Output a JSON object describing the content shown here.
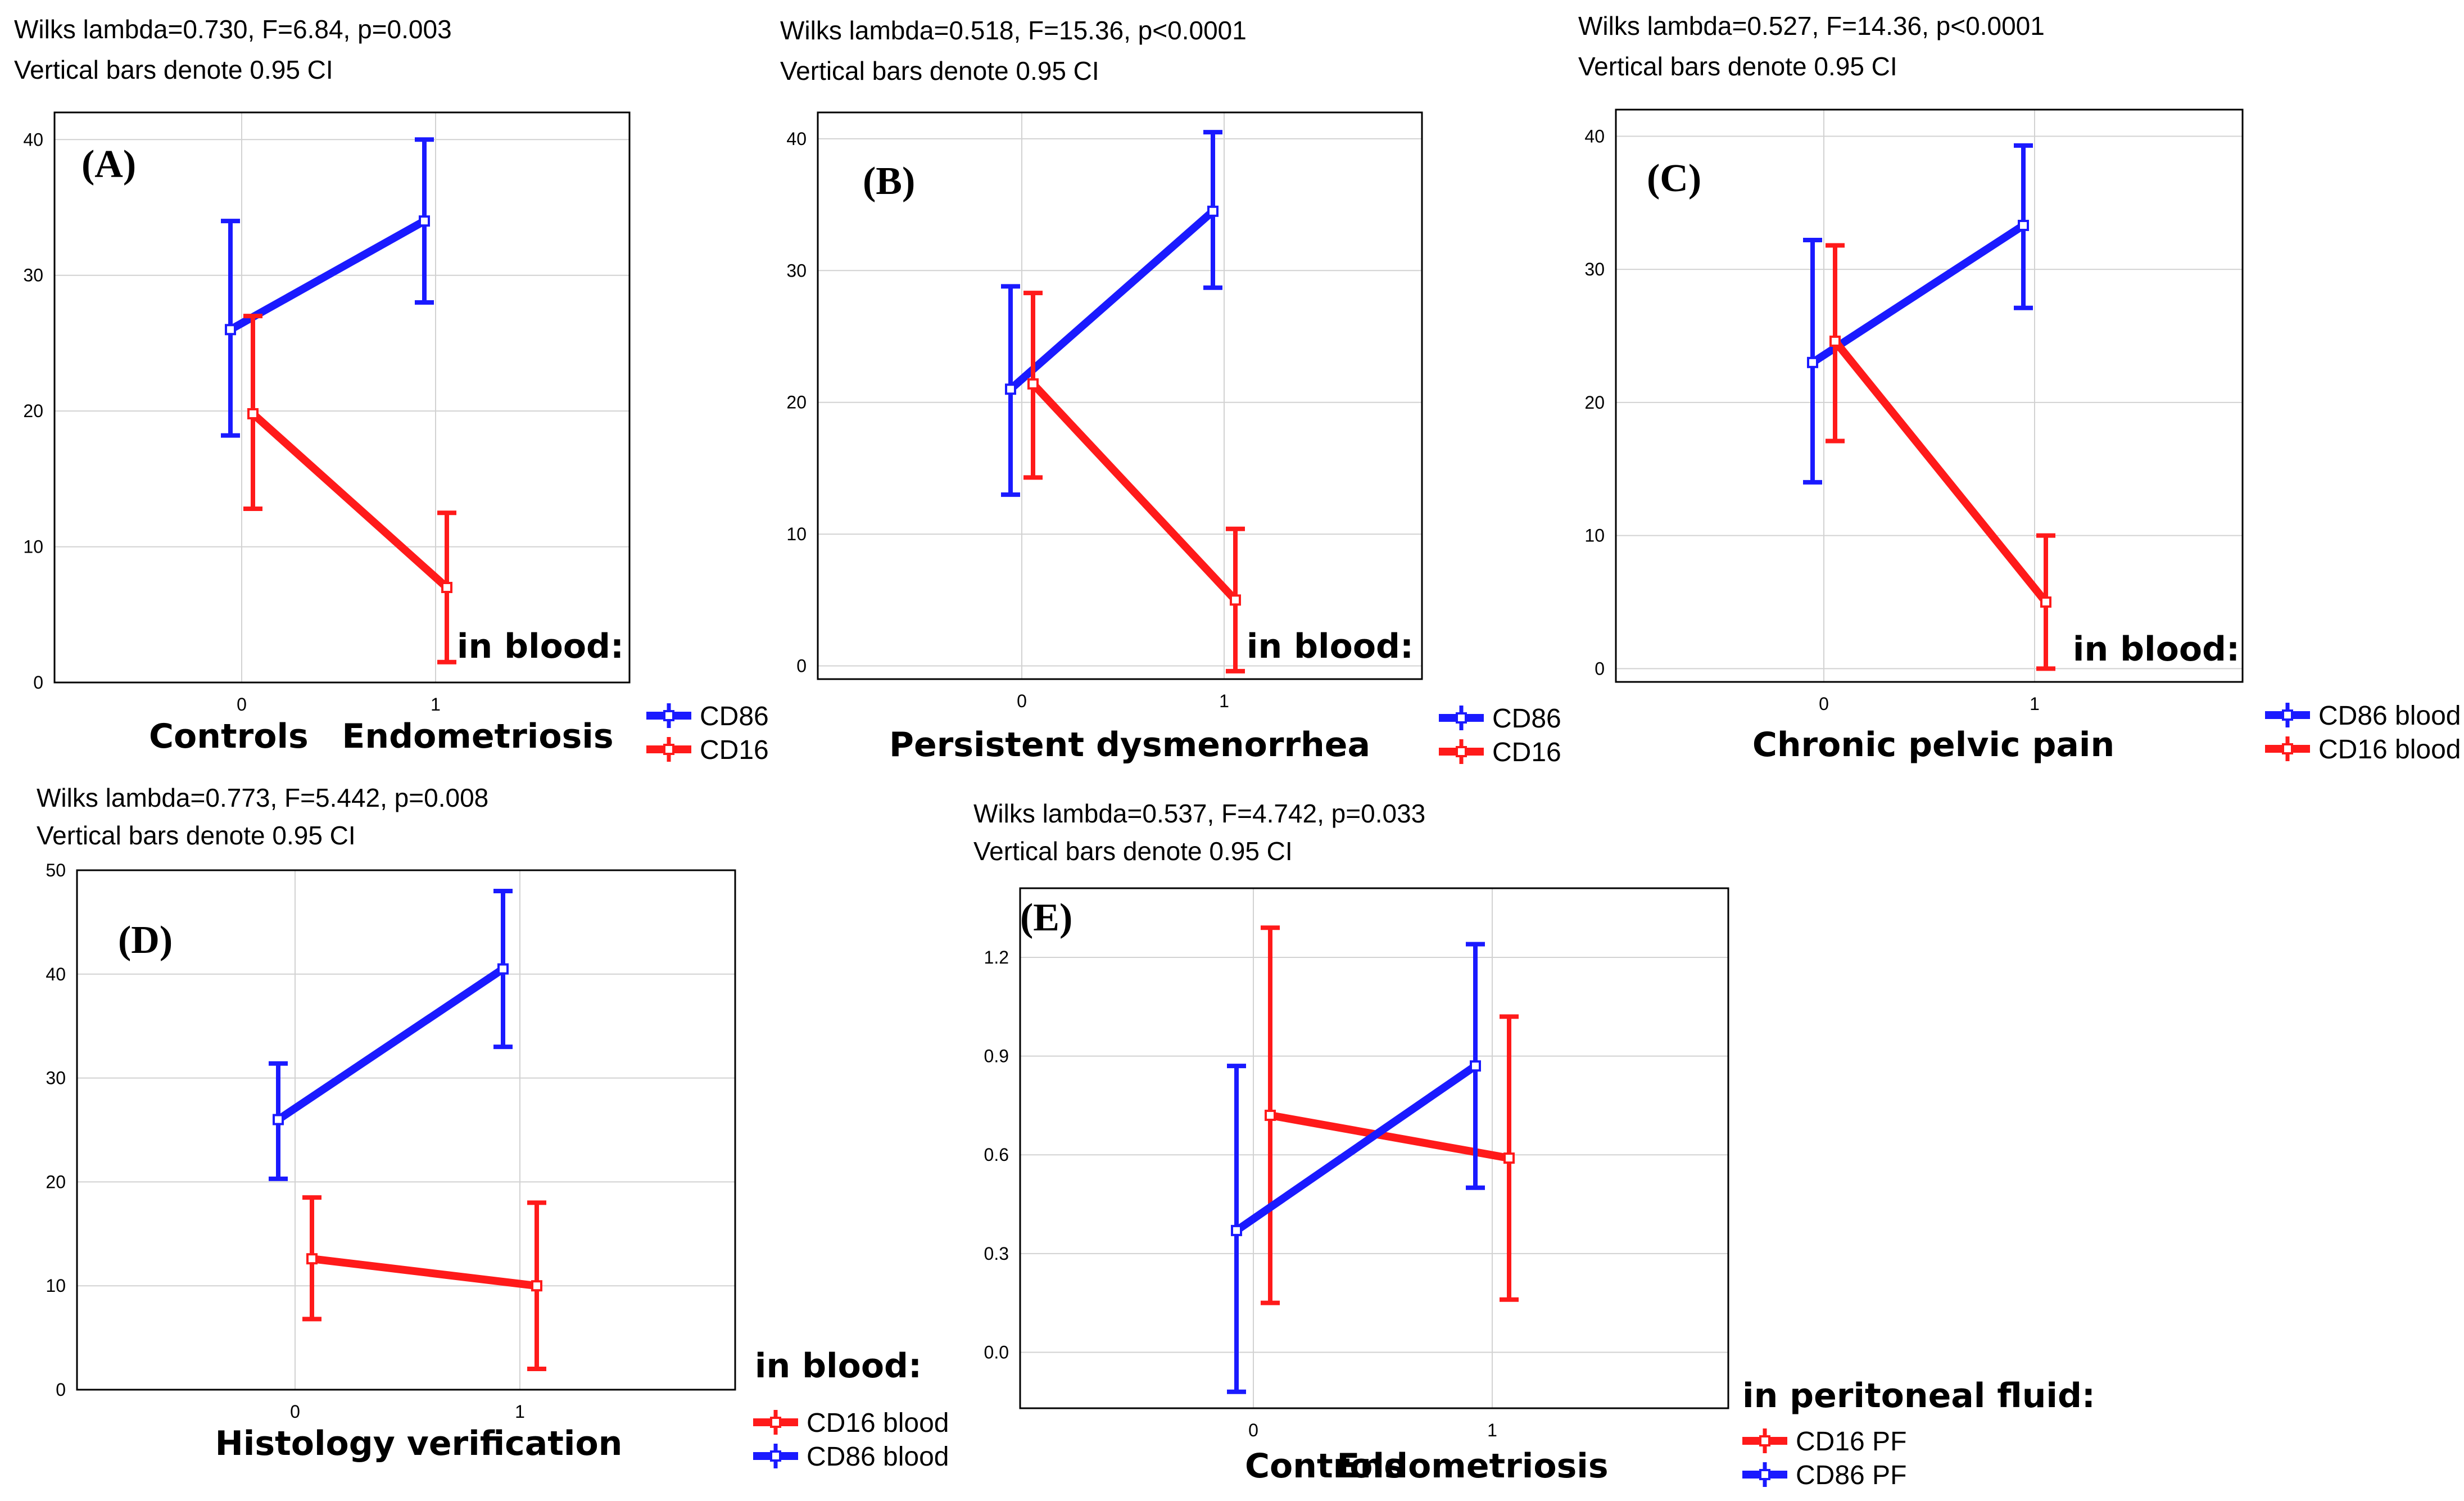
{
  "colors": {
    "blue": "#1a1aff",
    "red": "#ff1a1a"
  },
  "chart_data": [
    {
      "panel": "(A)",
      "type": "line",
      "stat_line1": "Wilks lambda=0.730, F=6.84, p=0.003",
      "stat_line2": "Vertical bars denote 0.95 CI",
      "x": [
        "0",
        "1"
      ],
      "x_group_labels": [
        "Controls",
        "Endometriosis"
      ],
      "xlabel": "",
      "note": "in blood:",
      "ylim": [
        0,
        42
      ],
      "yticks": [
        "0",
        "10",
        "20",
        "30",
        "40"
      ],
      "series": [
        {
          "name": "CD86",
          "color": "blue",
          "values": [
            26,
            34
          ],
          "ci_low": [
            18.2,
            28
          ],
          "ci_high": [
            34,
            40
          ]
        },
        {
          "name": "CD16",
          "color": "red",
          "values": [
            19.8,
            7
          ],
          "ci_low": [
            12.8,
            1.5
          ],
          "ci_high": [
            27,
            12.5
          ]
        }
      ]
    },
    {
      "panel": "(B)",
      "type": "line",
      "stat_line1": "Wilks lambda=0.518, F=15.36, p<0.0001",
      "stat_line2": "Vertical bars denote 0.95 CI",
      "x": [
        "0",
        "1"
      ],
      "x_group_labels": [],
      "xlabel": "Persistent dysmenorrhea",
      "note": "in blood:",
      "ylim": [
        -1,
        42
      ],
      "yticks": [
        "0",
        "10",
        "20",
        "30",
        "40"
      ],
      "series": [
        {
          "name": "CD86",
          "color": "blue",
          "values": [
            21,
            34.5
          ],
          "ci_low": [
            13,
            28.7
          ],
          "ci_high": [
            28.8,
            40.5
          ]
        },
        {
          "name": "CD16",
          "color": "red",
          "values": [
            21.4,
            5
          ],
          "ci_low": [
            14.3,
            -0.4
          ],
          "ci_high": [
            28.3,
            10.4
          ]
        }
      ]
    },
    {
      "panel": "(C)",
      "type": "line",
      "stat_line1": "Wilks lambda=0.527, F=14.36, p<0.0001",
      "stat_line2": "Vertical bars denote 0.95 CI",
      "x": [
        "0",
        "1"
      ],
      "x_group_labels": [],
      "xlabel": "Chronic pelvic pain",
      "note": "in blood:",
      "ylim": [
        -1,
        42
      ],
      "yticks": [
        "0",
        "10",
        "20",
        "30",
        "40"
      ],
      "series": [
        {
          "name": "CD86 blood",
          "color": "blue",
          "values": [
            23,
            33.3
          ],
          "ci_low": [
            14,
            27.1
          ],
          "ci_high": [
            32.2,
            39.3
          ]
        },
        {
          "name": "CD16 blood",
          "color": "red",
          "values": [
            24.6,
            5
          ],
          "ci_low": [
            17.1,
            0
          ],
          "ci_high": [
            31.8,
            10
          ]
        }
      ]
    },
    {
      "panel": "(D)",
      "type": "line",
      "stat_line1": "Wilks lambda=0.773, F=5.442, p=0.008",
      "stat_line2": "Vertical bars denote 0.95 CI",
      "x": [
        "0",
        "1"
      ],
      "x_group_labels": [],
      "xlabel": "Histology verification",
      "note": "in blood:",
      "ylim": [
        0,
        50
      ],
      "yticks": [
        "0",
        "10",
        "20",
        "30",
        "40",
        "50"
      ],
      "series": [
        {
          "name": "CD16 blood",
          "color": "red",
          "values": [
            12.6,
            10
          ],
          "ci_low": [
            6.8,
            2
          ],
          "ci_high": [
            18.5,
            18
          ]
        },
        {
          "name": "CD86 blood",
          "color": "blue",
          "values": [
            26,
            40.5
          ],
          "ci_low": [
            20.3,
            33
          ],
          "ci_high": [
            31.4,
            48
          ]
        }
      ]
    },
    {
      "panel": "(E)",
      "type": "line",
      "stat_line1": "Wilks lambda=0.537, F=4.742, p=0.033",
      "stat_line2": "Vertical bars denote 0.95 CI",
      "x": [
        "0",
        "1"
      ],
      "x_group_labels": [
        "Controls",
        "Endometriosis"
      ],
      "xlabel": "",
      "note": "in peritoneal fluid:",
      "ylim": [
        -0.17,
        1.41
      ],
      "yticks": [
        "0.0",
        "0.3",
        "0.6",
        "0.9",
        "1.2"
      ],
      "series": [
        {
          "name": "CD16 PF",
          "color": "red",
          "values": [
            0.72,
            0.59
          ],
          "ci_low": [
            0.15,
            0.16
          ],
          "ci_high": [
            1.29,
            1.02
          ]
        },
        {
          "name": "CD86 PF",
          "color": "blue",
          "values": [
            0.37,
            0.87
          ],
          "ci_low": [
            -0.12,
            0.5
          ],
          "ci_high": [
            0.87,
            1.24
          ]
        }
      ]
    }
  ]
}
